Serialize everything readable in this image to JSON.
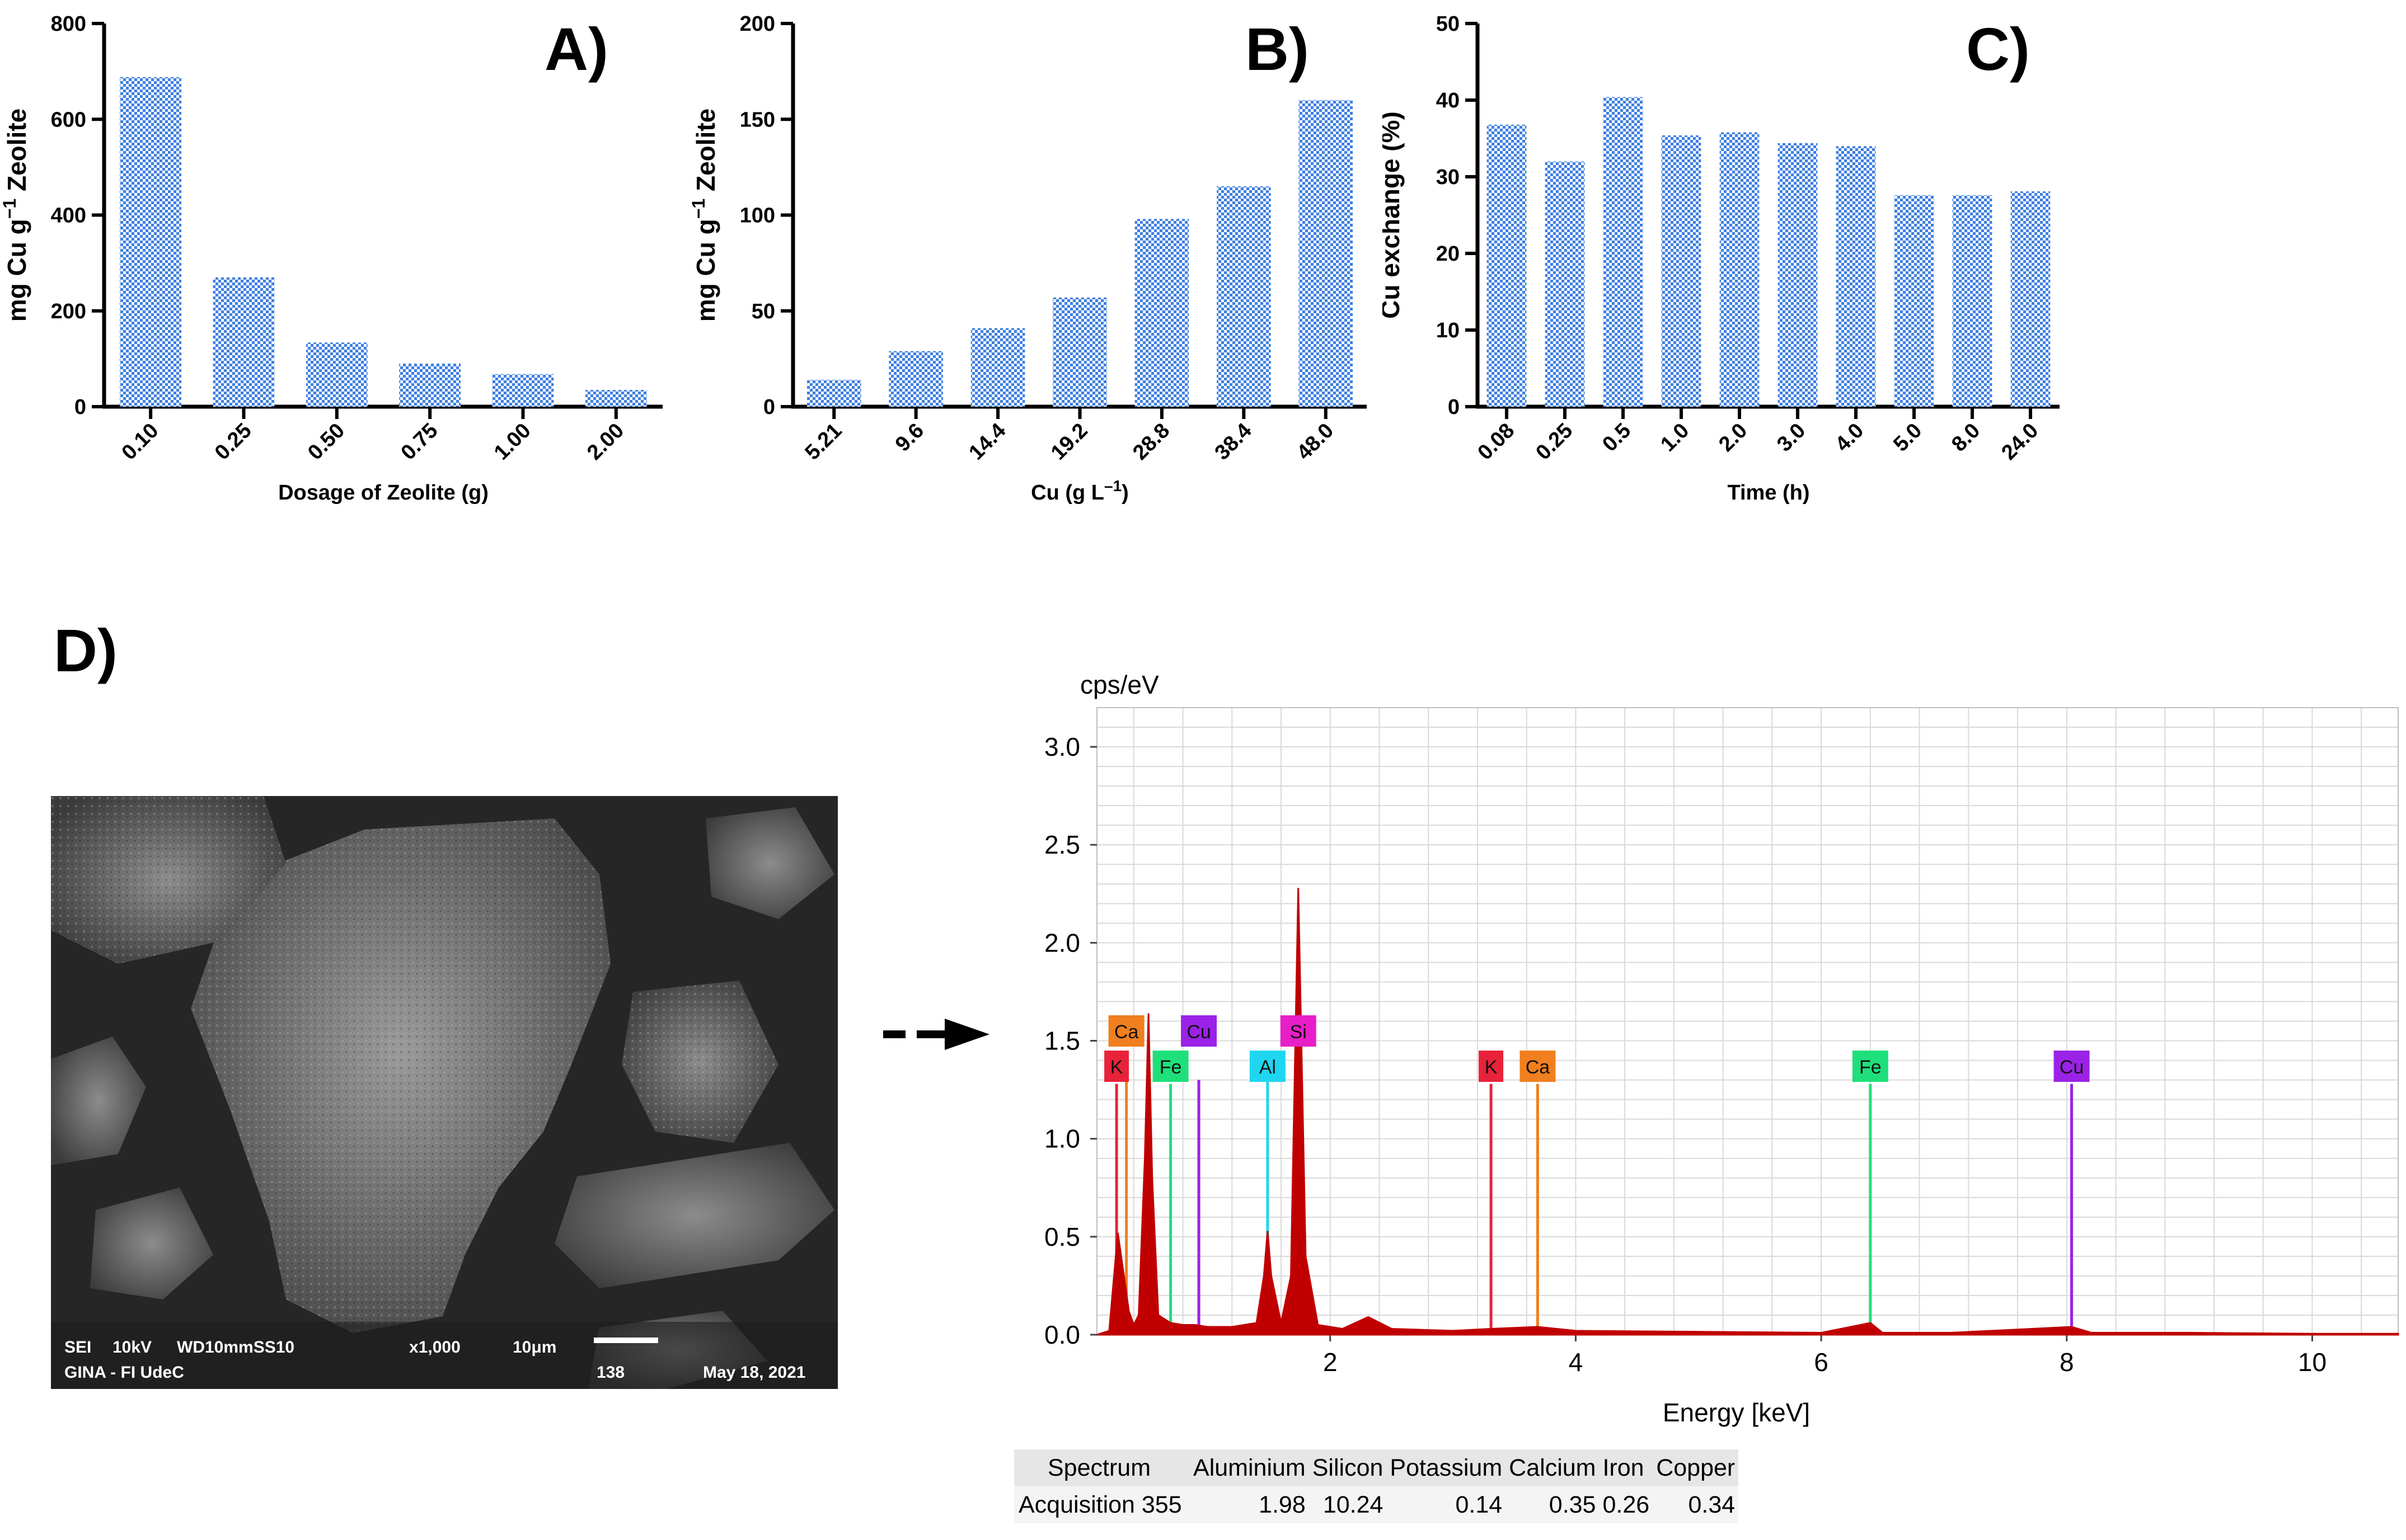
{
  "chart_data": [
    {
      "type": "bar",
      "panel_label": "A)",
      "title": "",
      "xlabel": "Dosage of Zeolite (g)",
      "ylabel_parts": [
        "mg Cu g",
        "−1",
        " Zeolite"
      ],
      "ylabel": "mg Cu g−1 Zeolite",
      "ylim": [
        0,
        800
      ],
      "yticks": [
        "0",
        "200",
        "400",
        "600",
        "800"
      ],
      "categories": [
        "0.10",
        "0.25",
        "0.50",
        "0.75",
        "1.00",
        "2.00"
      ],
      "values": [
        688,
        270,
        134,
        90,
        68,
        35
      ]
    },
    {
      "type": "bar",
      "panel_label": "B)",
      "title": "",
      "xlabel": "Cu (g L–1)",
      "xlabel_parts": [
        "Cu (g L",
        "–1",
        ")"
      ],
      "ylabel_parts": [
        "mg Cu g",
        "−1",
        " Zeolite"
      ],
      "ylabel": "mg Cu g−1 Zeolite",
      "ylim": [
        0,
        200
      ],
      "yticks": [
        "0",
        "50",
        "100",
        "150",
        "200"
      ],
      "categories": [
        "5.21",
        "9.6",
        "14.4",
        "19.2",
        "28.8",
        "38.4",
        "48.0"
      ],
      "values": [
        14,
        29,
        41,
        57,
        98,
        115,
        160
      ]
    },
    {
      "type": "bar",
      "panel_label": "C)",
      "title": "",
      "xlabel": "Time (h)",
      "ylabel": "Cu exchange (%)",
      "ylim": [
        0,
        50
      ],
      "yticks": [
        "0",
        "10",
        "20",
        "30",
        "40",
        "50"
      ],
      "categories": [
        "0.08",
        "0.25",
        "0.5",
        "1.0",
        "2.0",
        "3.0",
        "4.0",
        "5.0",
        "8.0",
        "24.0"
      ],
      "values": [
        36.8,
        32,
        40.4,
        35.4,
        35.8,
        34.4,
        34.0,
        27.6,
        27.6,
        28.1
      ]
    },
    {
      "type": "line",
      "panel_label": "D)",
      "title": "",
      "ylabel": "cps/eV",
      "xlabel": "Energy [keV]",
      "xlim": [
        0.1,
        10.7
      ],
      "ylim": [
        0,
        3.2
      ],
      "xticks": [
        "2",
        "4",
        "6",
        "8",
        "10"
      ],
      "xtick_values": [
        2,
        4,
        6,
        8,
        10
      ],
      "yticks": [
        "0.0",
        "0.5",
        "1.0",
        "1.5",
        "2.0",
        "2.5",
        "3.0"
      ],
      "ytick_values": [
        0,
        0.5,
        1.0,
        1.5,
        2.0,
        2.5,
        3.0
      ],
      "series": [
        {
          "name": "Spectrum",
          "color": "#c00000",
          "points": [
            [
              0.1,
              0.0
            ],
            [
              0.2,
              0.02
            ],
            [
              0.27,
              0.52
            ],
            [
              0.32,
              0.3
            ],
            [
              0.36,
              0.12
            ],
            [
              0.4,
              0.05
            ],
            [
              0.44,
              0.1
            ],
            [
              0.49,
              0.9
            ],
            [
              0.52,
              1.64
            ],
            [
              0.55,
              0.8
            ],
            [
              0.6,
              0.1
            ],
            [
              0.7,
              0.06
            ],
            [
              0.8,
              0.05
            ],
            [
              0.9,
              0.05
            ],
            [
              1.0,
              0.04
            ],
            [
              1.2,
              0.04
            ],
            [
              1.4,
              0.06
            ],
            [
              1.46,
              0.3
            ],
            [
              1.49,
              0.53
            ],
            [
              1.52,
              0.3
            ],
            [
              1.6,
              0.06
            ],
            [
              1.68,
              0.3
            ],
            [
              1.74,
              2.28
            ],
            [
              1.8,
              0.4
            ],
            [
              1.9,
              0.05
            ],
            [
              2.1,
              0.03
            ],
            [
              2.31,
              0.09
            ],
            [
              2.5,
              0.03
            ],
            [
              3.0,
              0.02
            ],
            [
              3.31,
              0.03
            ],
            [
              3.69,
              0.04
            ],
            [
              4.0,
              0.02
            ],
            [
              5.0,
              0.015
            ],
            [
              6.0,
              0.01
            ],
            [
              6.4,
              0.06
            ],
            [
              6.5,
              0.01
            ],
            [
              7.06,
              0.01
            ],
            [
              8.04,
              0.04
            ],
            [
              8.2,
              0.01
            ],
            [
              9.0,
              0.01
            ],
            [
              10.0,
              0.005
            ],
            [
              10.7,
              0.005
            ]
          ]
        }
      ],
      "lines": [
        {
          "element": "K",
          "energy": 0.26,
          "height": 1.28,
          "color": "#e8223a"
        },
        {
          "element": "Ca",
          "energy": 0.34,
          "height": 1.3,
          "color": "#f07f1f"
        },
        {
          "element": "Fe",
          "energy": 0.7,
          "height": 1.28,
          "color": "#1ee07a"
        },
        {
          "element": "Cu",
          "energy": 0.93,
          "height": 1.3,
          "color": "#9b22e6"
        },
        {
          "element": "Al",
          "energy": 1.49,
          "height": 1.3,
          "color": "#1fd6f0"
        },
        {
          "element": "Si",
          "energy": 1.74,
          "height": 1.45,
          "color": "#e81fc8"
        },
        {
          "element": "K",
          "energy": 3.31,
          "height": 1.28,
          "color": "#e8223a"
        },
        {
          "element": "Ca",
          "energy": 3.69,
          "height": 1.28,
          "color": "#f07f1f"
        },
        {
          "element": "Fe",
          "energy": 6.4,
          "height": 1.28,
          "color": "#1ee07a"
        },
        {
          "element": "Cu",
          "energy": 8.04,
          "height": 1.28,
          "color": "#9b22e6"
        }
      ],
      "labels": [
        {
          "text": "Ca",
          "energy": 0.34,
          "level": 1.55,
          "color": "#f07f1f"
        },
        {
          "text": "Cu",
          "energy": 0.93,
          "level": 1.55,
          "color": "#9b22e6"
        },
        {
          "text": "Si",
          "energy": 1.74,
          "level": 1.55,
          "color": "#e81fc8"
        },
        {
          "text": "K",
          "energy": 0.26,
          "level": 1.37,
          "color": "#e8223a"
        },
        {
          "text": "Fe",
          "energy": 0.7,
          "level": 1.37,
          "color": "#1ee07a"
        },
        {
          "text": "Al",
          "energy": 1.49,
          "level": 1.37,
          "color": "#1fd6f0"
        },
        {
          "text": "K",
          "energy": 3.31,
          "level": 1.37,
          "color": "#e8223a"
        },
        {
          "text": "Ca",
          "energy": 3.69,
          "level": 1.37,
          "color": "#f07f1f"
        },
        {
          "text": "Fe",
          "energy": 6.4,
          "level": 1.37,
          "color": "#1ee07a"
        },
        {
          "text": "Cu",
          "energy": 8.04,
          "level": 1.37,
          "color": "#9b22e6"
        }
      ]
    }
  ],
  "sem": {
    "info_row1": [
      "SEI",
      "10kV",
      "WD10mmSS10",
      "x1,000",
      "10μm"
    ],
    "info_row2": [
      "GINA - FI UdeC",
      "138",
      "May 18, 2021"
    ]
  },
  "eds_table": {
    "headers": [
      "Spectrum",
      "Aluminium",
      "Silicon",
      "Potassium",
      "Calcium",
      "Iron",
      "Copper"
    ],
    "rows": [
      [
        "Acquisition 355",
        "1.98",
        "10.24",
        "0.14",
        "0.35",
        "0.26",
        "0.34"
      ]
    ]
  },
  "colors": {
    "bar": "#3d7fe0",
    "spectrum_fill": "#c00000",
    "grid": "#d9d9d9"
  }
}
